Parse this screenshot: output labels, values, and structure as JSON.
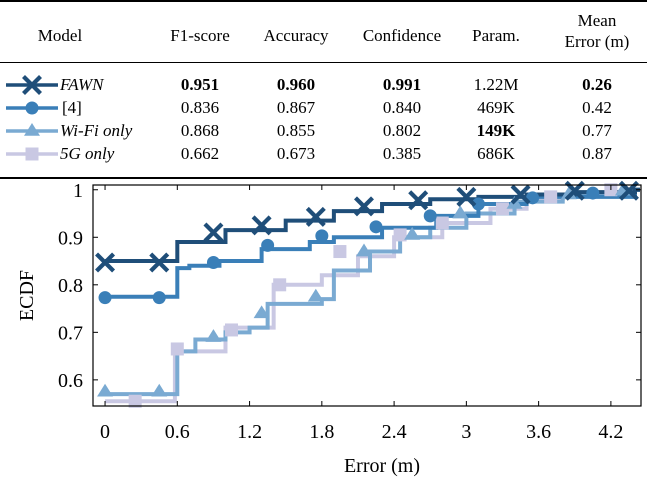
{
  "table": {
    "headers": [
      "Model",
      "F1-score",
      "Accuracy",
      "Confidence",
      "Param.",
      "Mean\nError (m)"
    ],
    "rows": [
      {
        "model": "FAWN",
        "model_italic": true,
        "f1": "0.951",
        "accuracy": "0.960",
        "confidence": "0.991",
        "params": "1.22M",
        "mean_error": "0.26",
        "bold": [
          "f1",
          "accuracy",
          "confidence",
          "mean_error"
        ],
        "color": "#1f4e79",
        "marker": "x-marker-icon"
      },
      {
        "model": "[4]",
        "model_italic": false,
        "f1": "0.836",
        "accuracy": "0.867",
        "confidence": "0.840",
        "params": "469K",
        "mean_error": "0.42",
        "bold": [],
        "color": "#3a7fb8",
        "marker": "circle-marker-icon"
      },
      {
        "model": "Wi-Fi only",
        "model_italic": true,
        "f1": "0.868",
        "accuracy": "0.855",
        "confidence": "0.802",
        "params": "149K",
        "mean_error": "0.77",
        "bold": [
          "params"
        ],
        "color": "#7aaad2",
        "marker": "triangle-marker-icon"
      },
      {
        "model": "5G only",
        "model_italic": true,
        "f1": "0.662",
        "accuracy": "0.673",
        "confidence": "0.385",
        "params": "686K",
        "mean_error": "0.87",
        "bold": [],
        "color": "#c9c8e3",
        "marker": "square-marker-icon"
      }
    ]
  },
  "chart_data": {
    "type": "line",
    "xlabel": "Error (m)",
    "ylabel": "ECDF",
    "xlim": [
      -0.1,
      4.45
    ],
    "ylim": [
      0.545,
      1.01
    ],
    "x_ticks": [
      0,
      0.6,
      1.2,
      1.8,
      2.4,
      3,
      3.6,
      4.2
    ],
    "x_tick_labels": [
      "0",
      "0.6",
      "1.2",
      "1.8",
      "2.4",
      "3",
      "3.6",
      "4.2"
    ],
    "y_ticks": [
      0.6,
      0.7,
      0.8,
      0.9,
      1.0
    ],
    "y_tick_labels": [
      "0.6",
      "0.7",
      "0.8",
      "0.9",
      "1"
    ],
    "grid": false,
    "step": true,
    "series": [
      {
        "name": "5G only",
        "color": "#c9c8e3",
        "marker": "square",
        "x": [
          0,
          0.58,
          1.0,
          1.4,
          1.8,
          2.1,
          2.4,
          2.8,
          3.2,
          3.5,
          3.8,
          4.4
        ],
        "y": [
          0.555,
          0.66,
          0.71,
          0.8,
          0.82,
          0.86,
          0.9,
          0.93,
          0.96,
          0.98,
          0.99,
          1.0
        ],
        "markers_x": [
          0.25,
          0.6,
          1.05,
          1.45,
          1.95,
          2.45,
          2.8,
          3.3,
          3.7,
          4.2
        ],
        "markers_y": [
          0.555,
          0.665,
          0.705,
          0.8,
          0.87,
          0.905,
          0.93,
          0.96,
          0.985,
          1.0
        ]
      },
      {
        "name": "Wi-Fi only",
        "color": "#7aaad2",
        "marker": "triangle",
        "x": [
          0,
          0.6,
          0.75,
          1.0,
          1.2,
          1.35,
          1.8,
          1.9,
          2.2,
          2.45,
          2.7,
          3.0,
          3.4,
          3.8,
          4.4
        ],
        "y": [
          0.57,
          0.66,
          0.685,
          0.7,
          0.71,
          0.76,
          0.77,
          0.83,
          0.87,
          0.9,
          0.92,
          0.95,
          0.975,
          0.99,
          1.0
        ],
        "markers_x": [
          0,
          0.45,
          0.9,
          1.3,
          1.75,
          2.15,
          2.55,
          2.95,
          3.4,
          3.85,
          4.3
        ],
        "markers_y": [
          0.575,
          0.575,
          0.69,
          0.74,
          0.775,
          0.87,
          0.905,
          0.95,
          0.97,
          0.99,
          0.998
        ]
      },
      {
        "name": "[4]",
        "color": "#3a7fb8",
        "marker": "circle",
        "x": [
          0,
          0.6,
          0.7,
          0.95,
          1.3,
          1.7,
          1.9,
          2.3,
          2.75,
          3.1,
          3.5,
          4.4
        ],
        "y": [
          0.775,
          0.835,
          0.84,
          0.85,
          0.875,
          0.89,
          0.9,
          0.92,
          0.945,
          0.97,
          0.985,
          1.0
        ],
        "markers_x": [
          0,
          0.45,
          0.9,
          1.35,
          1.8,
          2.25,
          2.7,
          3.1,
          3.55,
          4.05
        ],
        "markers_y": [
          0.773,
          0.773,
          0.847,
          0.883,
          0.903,
          0.922,
          0.945,
          0.97,
          0.983,
          0.993
        ]
      },
      {
        "name": "FAWN",
        "color": "#1f4e79",
        "marker": "x",
        "x": [
          0,
          0.6,
          1.0,
          1.5,
          1.9,
          2.3,
          2.7,
          3.1,
          3.5,
          3.9,
          4.4
        ],
        "y": [
          0.85,
          0.89,
          0.915,
          0.935,
          0.955,
          0.97,
          0.98,
          0.985,
          0.99,
          0.995,
          1.0
        ],
        "markers_x": [
          0,
          0.45,
          0.9,
          1.3,
          1.75,
          2.15,
          2.6,
          3.0,
          3.45,
          3.9,
          4.35
        ],
        "markers_y": [
          0.847,
          0.847,
          0.91,
          0.925,
          0.943,
          0.965,
          0.978,
          0.985,
          0.99,
          0.998,
          0.998
        ]
      }
    ]
  }
}
